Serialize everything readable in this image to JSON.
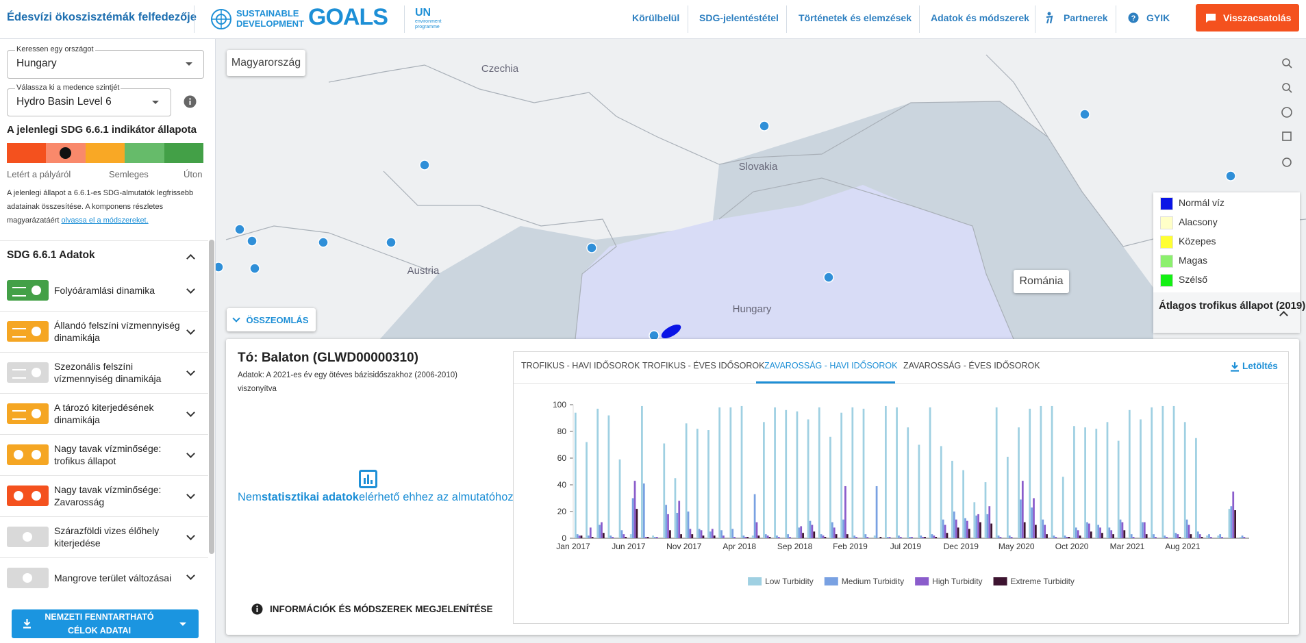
{
  "header": {
    "title": "Édesvízi ökoszisztémák felfedezője",
    "sdg_logo": [
      "SUSTAINABLE",
      "DEVELOPMENT",
      "GOALS"
    ],
    "un_logo": "UN",
    "un_sub": [
      "environment",
      "programme"
    ],
    "nav": [
      "Körülbelül",
      "SDG-jelentéstétel",
      "Történetek és elemzések",
      "Adatok és módszerek",
      "Partnerek",
      "GYIK"
    ],
    "feedback": "Visszacsatolás"
  },
  "sidebar": {
    "country_label": "Keressen egy országot",
    "country": "Hungary",
    "basin_label": "Válassza ki a medence szintjét",
    "basin": "Hydro Basin Level 6",
    "status_title": "A jelenlegi SDG 6.6.1 indikátor állapota",
    "status_scale": [
      "Letért a pályáról",
      "Semleges",
      "Úton"
    ],
    "description": "A jelenlegi állapot a 6.6.1-es SDG-almutatók legfrissebb adatainak összesítése. A komponens részletes magyarázatáért",
    "description_link": "olvassa el a módszereket.",
    "data_title": "SDG 6.6.1 Adatok",
    "items": [
      "Folyóáramlási dinamika",
      "Állandó felszíni vízmennyiség dinamikája",
      "Szezonális felszíni vízmennyiség dinamikája",
      "A tározó kiterjedésének dinamikája",
      "Nagy tavak vízminősége: trofikus állapot",
      "Nagy tavak vízminősége: Zavarosság",
      "Szárazföldi vizes élőhely kiterjedése",
      "Mangrove terület változásai"
    ],
    "national_button": "NEMZETI FENNTARTHATÓ CÉLOK ADATAI"
  },
  "map": {
    "labels": [
      "Czechia",
      "Slovakia",
      "Austria",
      "Hungary"
    ],
    "country_button": "Magyarország",
    "neighbour_button": "Románia",
    "legend": [
      {
        "name": "Normál víz",
        "color": "#0a14e6"
      },
      {
        "name": "Alacsony",
        "color": "#ffffc8"
      },
      {
        "name": "Közepes",
        "color": "#ffff33"
      },
      {
        "name": "Magas",
        "color": "#8cf06e"
      },
      {
        "name": "Szélső",
        "color": "#14f014"
      }
    ],
    "legend_title": "Átlagos trofikus állapot (2019)"
  },
  "panel": {
    "collapse": "ÖSSZEOMLÁS",
    "lake_title": "Tó: Balaton (GLWD00000310)",
    "lake_subtitle": "Adatok: A 2021-es év egy ötéves bázisidőszakhoz (2006-2010) viszonyítva",
    "no_data": [
      "Nem",
      "statisztikai adatok",
      "elérhető ehhez az almutatóhoz"
    ],
    "info": "INFORMÁCIÓK ÉS MÓDSZEREK MEGJELENÍTÉSE",
    "tabs": [
      "TROFIKUS - HAVI IDŐSOROK",
      "TROFIKUS - ÉVES IDŐSOROK",
      "ZAVAROSSÁG - HAVI IDŐSOROK",
      "ZAVAROSSÁG - ÉVES IDŐSOROK"
    ],
    "download": "Letöltés"
  },
  "chart_data": {
    "type": "bar",
    "categories": [
      "Jan 2017",
      null,
      null,
      null,
      null,
      "Jun 2017",
      null,
      null,
      null,
      null,
      "Nov 2017",
      null,
      null,
      null,
      null,
      "Apr 2018",
      null,
      null,
      null,
      null,
      "Sep 2018",
      null,
      null,
      null,
      null,
      "Feb 2019",
      null,
      null,
      null,
      null,
      "Jul 2019",
      null,
      null,
      null,
      null,
      "Dec 2019",
      null,
      null,
      null,
      null,
      "May 2020",
      null,
      null,
      null,
      null,
      "Oct 2020",
      null,
      null,
      null,
      null,
      "Mar 2021",
      null,
      null,
      null,
      null,
      "Aug 2021",
      null,
      null,
      null,
      null,
      null
    ],
    "series": [
      {
        "name": "Low Turbidity",
        "color": "#9fd0e2",
        "values": [
          94,
          72,
          97,
          92,
          59,
          3,
          99,
          2,
          71,
          45,
          86,
          82,
          81,
          98,
          98,
          99,
          2,
          87,
          98,
          96,
          95,
          89,
          98,
          76,
          94,
          98,
          97,
          2,
          99,
          98,
          83,
          70,
          98,
          69,
          58,
          51,
          27,
          42,
          98,
          61,
          83,
          97,
          99,
          99,
          46,
          84,
          83,
          82,
          87,
          73,
          96,
          89,
          98,
          99,
          99,
          87,
          75,
          2,
          2,
          22,
          1
        ]
      },
      {
        "name": "Medium Turbidity",
        "color": "#79a1e2",
        "values": [
          3,
          2,
          10,
          2,
          6,
          30,
          41,
          1,
          25,
          19,
          20,
          7,
          5,
          6,
          7,
          2,
          33,
          3,
          2,
          3,
          8,
          13,
          3,
          12,
          14,
          2,
          3,
          39,
          1,
          2,
          1,
          2,
          3,
          14,
          20,
          15,
          17,
          18,
          2,
          2,
          29,
          23,
          14,
          2,
          2,
          8,
          12,
          10,
          8,
          14,
          3,
          12,
          3,
          2,
          4,
          14,
          5,
          3,
          3,
          24,
          2
        ]
      },
      {
        "name": "High Turbidity",
        "color": "#8a5ccb",
        "values": [
          2,
          8,
          12,
          1,
          3,
          43,
          1,
          1,
          18,
          28,
          7,
          6,
          7,
          2,
          1,
          1,
          12,
          2,
          1,
          1,
          9,
          10,
          2,
          8,
          39,
          1,
          1,
          0,
          1,
          1,
          1,
          1,
          2,
          10,
          14,
          13,
          18,
          24,
          1,
          1,
          43,
          30,
          10,
          1,
          1,
          6,
          11,
          8,
          6,
          12,
          1,
          12,
          1,
          1,
          3,
          10,
          3,
          1,
          1,
          35,
          1
        ]
      },
      {
        "name": "Extreme Turbidity",
        "color": "#3d1430",
        "values": [
          2,
          1,
          4,
          0,
          1,
          22,
          1,
          0,
          6,
          3,
          3,
          2,
          2,
          0,
          0,
          1,
          2,
          1,
          0,
          0,
          4,
          5,
          1,
          3,
          3,
          0,
          0,
          1,
          0,
          0,
          0,
          1,
          1,
          4,
          8,
          7,
          12,
          11,
          0,
          0,
          12,
          10,
          3,
          0,
          1,
          2,
          5,
          4,
          3,
          6,
          0,
          3,
          0,
          0,
          1,
          3,
          1,
          0,
          0,
          21,
          0
        ]
      }
    ],
    "ylim": [
      0,
      100
    ],
    "yticks": [
      0,
      20,
      40,
      60,
      80,
      100
    ],
    "grid": false,
    "legend": "bottom"
  }
}
